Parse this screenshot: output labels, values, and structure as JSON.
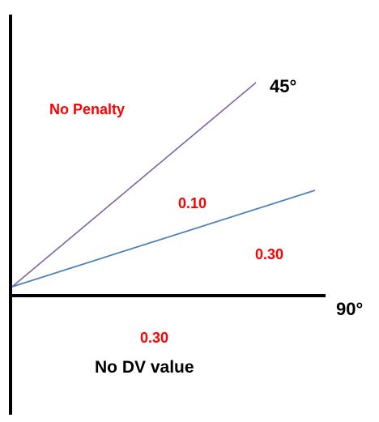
{
  "diagram": {
    "angle_labels": {
      "top": "45°",
      "right": "90°"
    },
    "region_labels": {
      "upper": "No Penalty",
      "middle": "0.10",
      "lower_right": "0.30",
      "below_axis_value": "0.30",
      "below_axis_text": "No DV value"
    },
    "colors": {
      "axis": "#000000",
      "line_45": "#8064a2",
      "line_shallow": "#4f81bd",
      "value_text": "#ff0000",
      "label_text": "#000000"
    }
  }
}
